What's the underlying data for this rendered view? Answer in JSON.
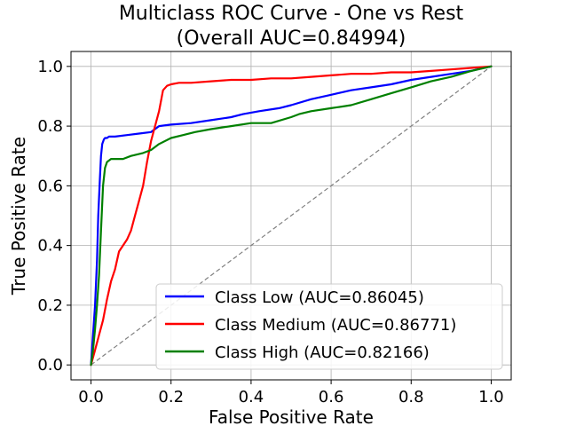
{
  "chart_data": {
    "type": "line",
    "title": "Multiclass ROC Curve - One vs Rest",
    "subtitle": "(Overall AUC=0.84994)",
    "xlabel": "False Positive Rate",
    "ylabel": "True Positive Rate",
    "xlim": [
      -0.05,
      1.05
    ],
    "ylim": [
      -0.05,
      1.05
    ],
    "xticks": [
      0.0,
      0.2,
      0.4,
      0.6,
      0.8,
      1.0
    ],
    "xtick_labels": [
      "0.0",
      "0.2",
      "0.4",
      "0.6",
      "0.8",
      "1.0"
    ],
    "yticks": [
      0.0,
      0.2,
      0.4,
      0.6,
      0.8,
      1.0
    ],
    "ytick_labels": [
      "0.0",
      "0.2",
      "0.4",
      "0.6",
      "0.8",
      "1.0"
    ],
    "grid": true,
    "legend_position": "lower-right",
    "chance_line": {
      "x": [
        0,
        1
      ],
      "y": [
        0,
        1
      ],
      "color": "#808080",
      "style": "dashed"
    },
    "series": [
      {
        "name": "Class Low (AUC=0.86045)",
        "color": "#0000ff",
        "x": [
          0.0,
          0.005,
          0.01,
          0.015,
          0.018,
          0.022,
          0.025,
          0.028,
          0.032,
          0.035,
          0.04,
          0.045,
          0.06,
          0.09,
          0.12,
          0.15,
          0.17,
          0.2,
          0.25,
          0.3,
          0.35,
          0.38,
          0.42,
          0.47,
          0.5,
          0.55,
          0.6,
          0.65,
          0.7,
          0.75,
          0.8,
          0.85,
          0.9,
          0.95,
          0.98,
          1.0
        ],
        "y": [
          0.0,
          0.1,
          0.2,
          0.35,
          0.5,
          0.62,
          0.7,
          0.74,
          0.755,
          0.76,
          0.76,
          0.765,
          0.765,
          0.77,
          0.775,
          0.78,
          0.8,
          0.805,
          0.81,
          0.82,
          0.83,
          0.84,
          0.85,
          0.86,
          0.87,
          0.89,
          0.905,
          0.92,
          0.93,
          0.94,
          0.955,
          0.965,
          0.975,
          0.985,
          0.995,
          1.0
        ]
      },
      {
        "name": "Class Medium (AUC=0.86771)",
        "color": "#ff0000",
        "x": [
          0.0,
          0.01,
          0.02,
          0.03,
          0.04,
          0.05,
          0.06,
          0.07,
          0.08,
          0.09,
          0.1,
          0.11,
          0.12,
          0.13,
          0.14,
          0.15,
          0.16,
          0.17,
          0.18,
          0.19,
          0.2,
          0.22,
          0.25,
          0.3,
          0.35,
          0.4,
          0.45,
          0.5,
          0.55,
          0.6,
          0.65,
          0.7,
          0.75,
          0.8,
          0.85,
          0.9,
          0.95,
          1.0
        ],
        "y": [
          0.0,
          0.05,
          0.1,
          0.15,
          0.22,
          0.28,
          0.32,
          0.38,
          0.4,
          0.42,
          0.45,
          0.5,
          0.55,
          0.6,
          0.68,
          0.75,
          0.8,
          0.85,
          0.92,
          0.935,
          0.94,
          0.945,
          0.945,
          0.95,
          0.955,
          0.955,
          0.96,
          0.96,
          0.965,
          0.97,
          0.975,
          0.975,
          0.98,
          0.98,
          0.985,
          0.99,
          0.995,
          1.0
        ]
      },
      {
        "name": "Class High (AUC=0.82166)",
        "color": "#008000",
        "x": [
          0.0,
          0.005,
          0.01,
          0.015,
          0.02,
          0.025,
          0.03,
          0.035,
          0.04,
          0.05,
          0.08,
          0.1,
          0.13,
          0.15,
          0.17,
          0.2,
          0.23,
          0.26,
          0.3,
          0.35,
          0.4,
          0.45,
          0.5,
          0.52,
          0.55,
          0.6,
          0.65,
          0.7,
          0.75,
          0.8,
          0.85,
          0.9,
          0.95,
          1.0
        ],
        "y": [
          0.0,
          0.05,
          0.12,
          0.2,
          0.3,
          0.45,
          0.6,
          0.66,
          0.68,
          0.69,
          0.69,
          0.7,
          0.71,
          0.72,
          0.74,
          0.76,
          0.77,
          0.78,
          0.79,
          0.8,
          0.81,
          0.81,
          0.83,
          0.84,
          0.85,
          0.86,
          0.87,
          0.89,
          0.91,
          0.93,
          0.95,
          0.965,
          0.985,
          1.0
        ]
      }
    ]
  }
}
